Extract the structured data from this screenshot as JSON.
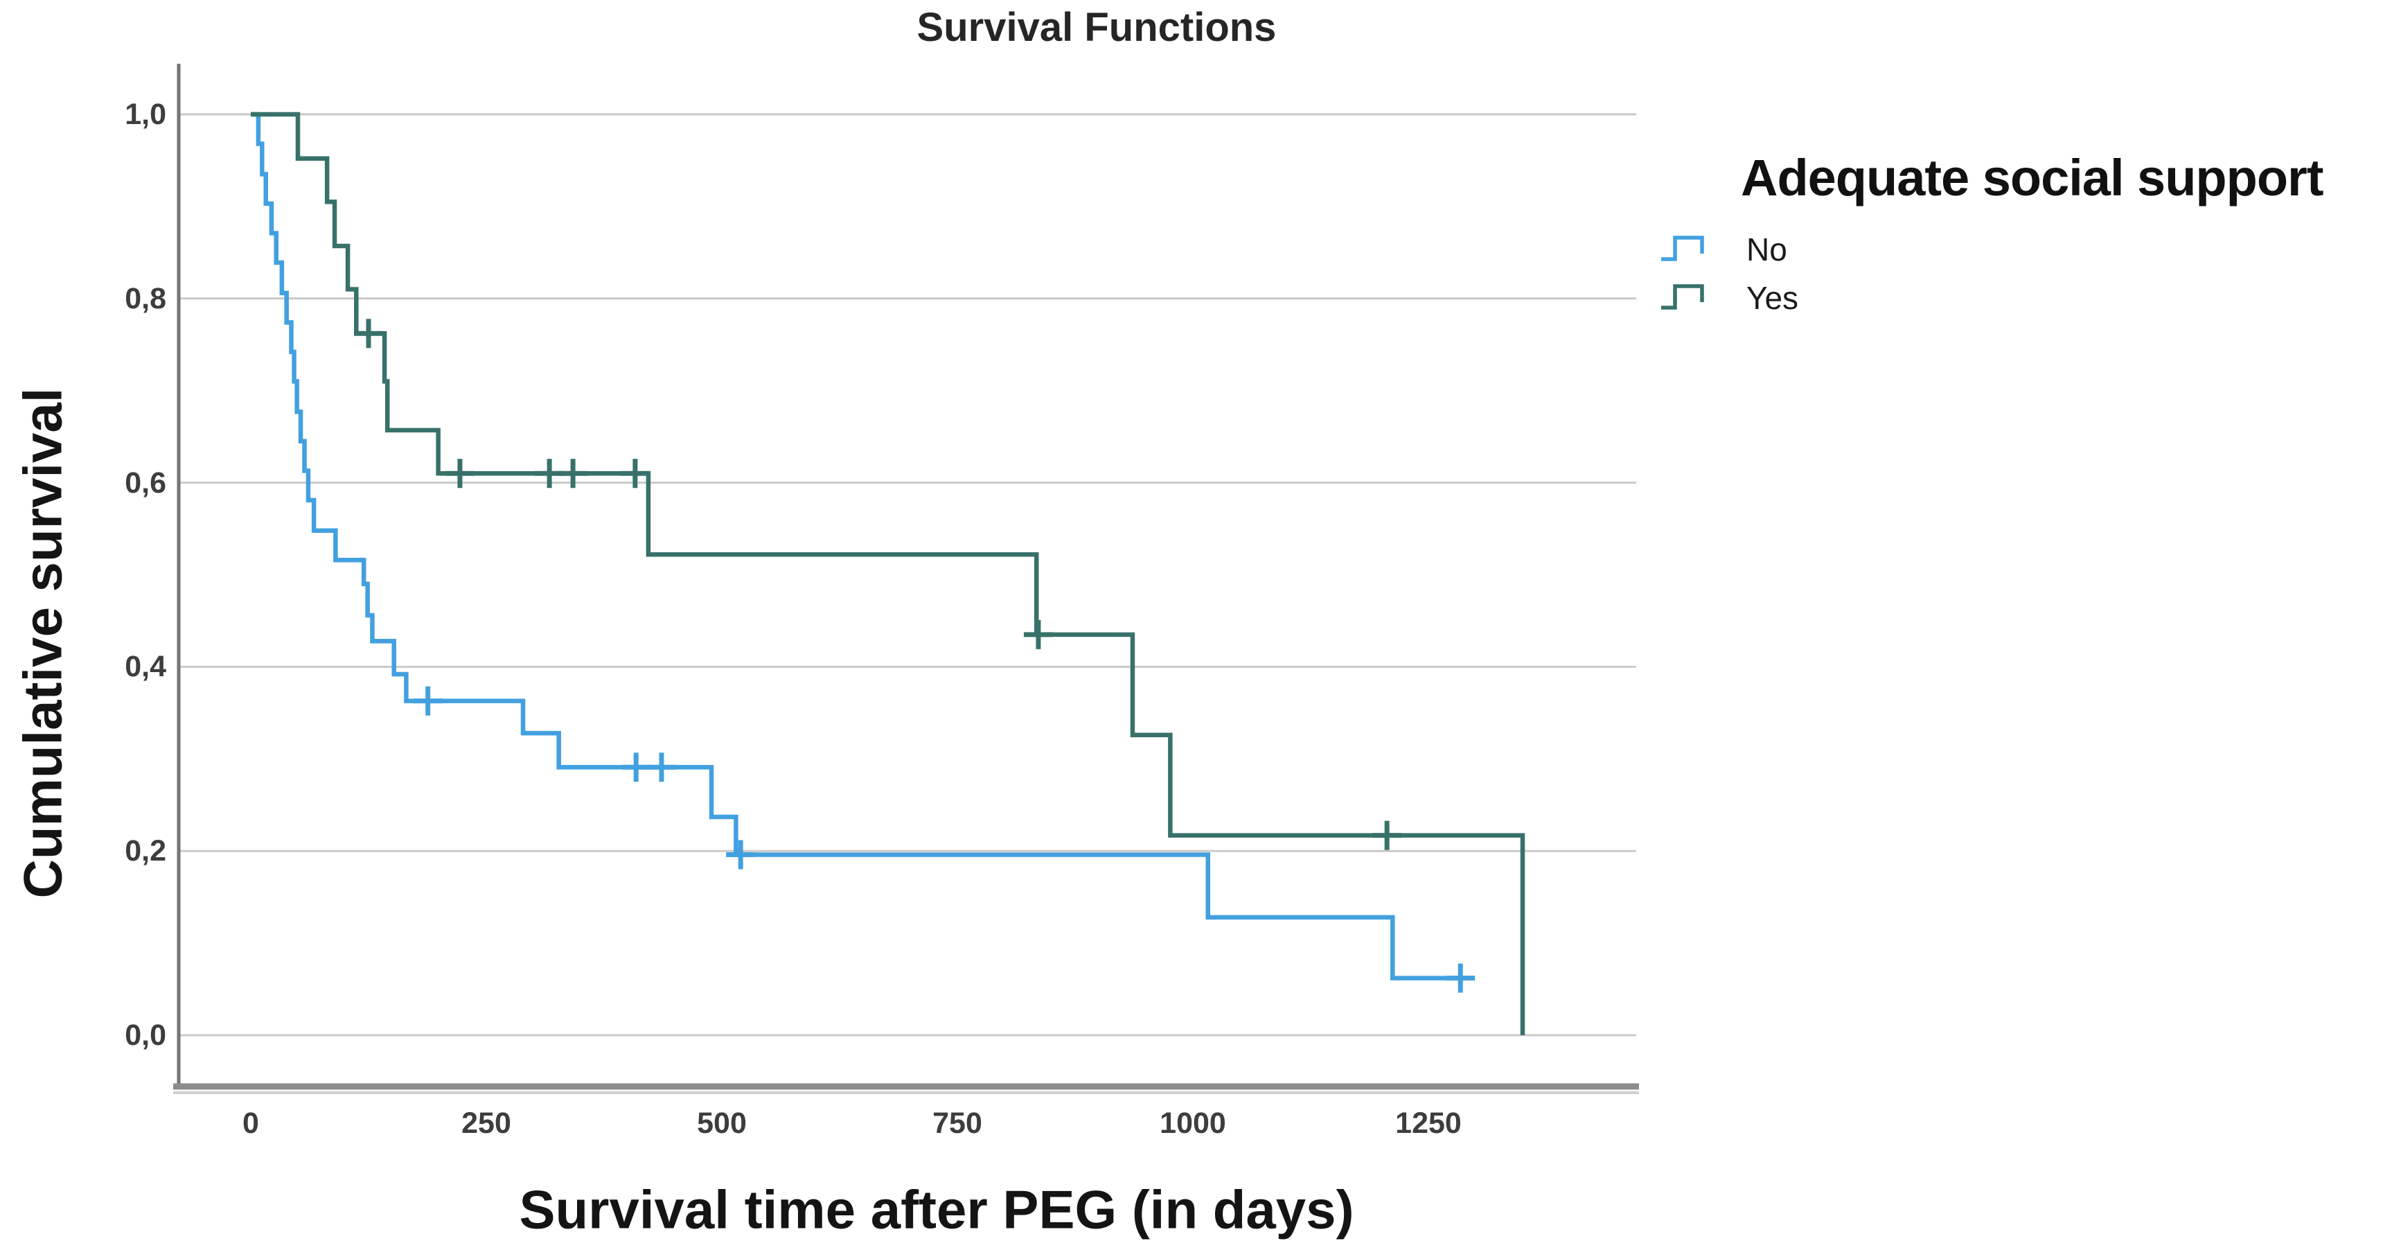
{
  "figure": {
    "title": "Survival Functions",
    "x_axis": {
      "label": "Survival time after PEG (in days)"
    },
    "y_axis": {
      "label": "Cumulative survival"
    },
    "legend": {
      "title": "Adequate social support",
      "items": [
        {
          "label": "No",
          "color": "#42a0e0"
        },
        {
          "label": "Yes",
          "color": "#37716a"
        }
      ]
    }
  },
  "chart_data": {
    "type": "line",
    "subtype": "kaplan-meier-step",
    "title": "Survival Functions",
    "xlabel": "Survival time after PEG (in days)",
    "ylabel": "Cumulative survival",
    "legend_title": "Adequate social support",
    "legend_position": "top-right",
    "grid": "horizontal",
    "xlim": [
      -75,
      1470
    ],
    "ylim": [
      -0.05,
      1.05
    ],
    "x_ticks": [
      {
        "label": "0",
        "value": 0
      },
      {
        "label": "250",
        "value": 250
      },
      {
        "label": "500",
        "value": 500
      },
      {
        "label": "750",
        "value": 750
      },
      {
        "label": "1000",
        "value": 1000
      },
      {
        "label": "1250",
        "value": 1250
      }
    ],
    "y_ticks": [
      {
        "label": "1,0",
        "value": 1.0
      },
      {
        "label": "0,8",
        "value": 0.8
      },
      {
        "label": "0,6",
        "value": 0.6
      },
      {
        "label": "0,4",
        "value": 0.4
      },
      {
        "label": "0,2",
        "value": 0.2
      },
      {
        "label": "0,0",
        "value": 0.0
      }
    ],
    "series": [
      {
        "name": "No",
        "color": "#42a0e0",
        "steps": [
          [
            0,
            1.0
          ],
          [
            8,
            0.968
          ],
          [
            12,
            0.935
          ],
          [
            16,
            0.903
          ],
          [
            22,
            0.871
          ],
          [
            27,
            0.839
          ],
          [
            33,
            0.806
          ],
          [
            38,
            0.774
          ],
          [
            43,
            0.742
          ],
          [
            46,
            0.71
          ],
          [
            49,
            0.677
          ],
          [
            53,
            0.645
          ],
          [
            57,
            0.613
          ],
          [
            61,
            0.581
          ],
          [
            67,
            0.548
          ],
          [
            90,
            0.516
          ],
          [
            120,
            0.49
          ],
          [
            124,
            0.456
          ],
          [
            129,
            0.428
          ],
          [
            152,
            0.392
          ],
          [
            165,
            0.363
          ],
          [
            289,
            0.328
          ],
          [
            327,
            0.291
          ],
          [
            489,
            0.237
          ],
          [
            515,
            0.196
          ],
          [
            1016,
            0.128
          ],
          [
            1212,
            0.062
          ]
        ],
        "end_time": 1298,
        "censored": [
          [
            188,
            0.363
          ],
          [
            409,
            0.291
          ],
          [
            436,
            0.291
          ],
          [
            520,
            0.196
          ],
          [
            1284,
            0.062
          ]
        ]
      },
      {
        "name": "Yes",
        "color": "#37716a",
        "steps": [
          [
            0,
            1.0
          ],
          [
            50,
            0.952
          ],
          [
            81,
            0.905
          ],
          [
            89,
            0.857
          ],
          [
            103,
            0.81
          ],
          [
            112,
            0.762
          ],
          [
            142,
            0.71
          ],
          [
            145,
            0.657
          ],
          [
            199,
            0.61
          ],
          [
            422,
            0.522
          ],
          [
            834,
            0.435
          ],
          [
            936,
            0.326
          ],
          [
            976,
            0.217
          ],
          [
            1350,
            0.0
          ]
        ],
        "end_time": 1350,
        "censored": [
          [
            125,
            0.762
          ],
          [
            222,
            0.61
          ],
          [
            317,
            0.61
          ],
          [
            342,
            0.61
          ],
          [
            408,
            0.61
          ],
          [
            836,
            0.435
          ],
          [
            1206,
            0.217
          ]
        ]
      }
    ]
  }
}
